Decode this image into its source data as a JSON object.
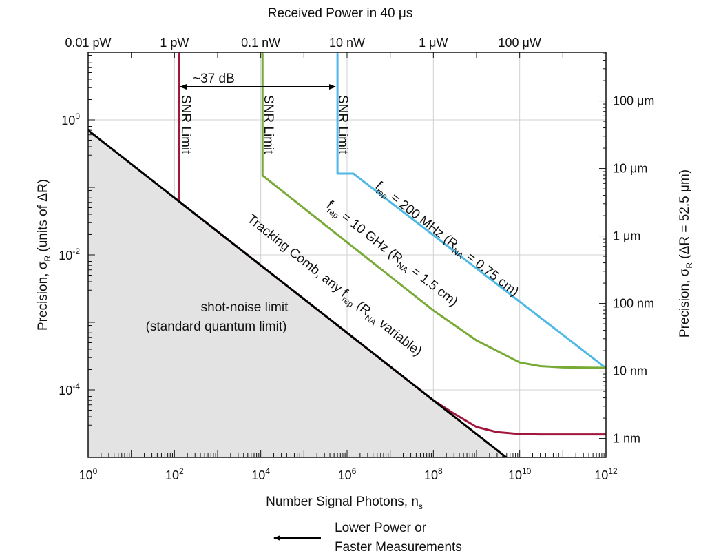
{
  "chart_data": {
    "type": "line",
    "top_axis_title": "Received Power in 40 μs",
    "bottom_axis_title": {
      "base": "Number Signal Photons, n",
      "sub": "s"
    },
    "left_axis_title": {
      "pre": "Precision, σ",
      "sub": "R",
      "post": " (units of ΔR)"
    },
    "right_axis_title": {
      "pre": "Precision, σ",
      "sub": "R",
      "post": " (ΔR = 52.5 μm)"
    },
    "x_scale": "log",
    "y_scale": "log",
    "xlim": [
      1,
      1000000000000.0
    ],
    "ylim": [
      1e-05,
      10
    ],
    "grid": true,
    "x_tick_labels": [
      {
        "base": "10",
        "exp": "0",
        "value": 1
      },
      {
        "base": "10",
        "exp": "2",
        "value": 100
      },
      {
        "base": "10",
        "exp": "4",
        "value": 10000
      },
      {
        "base": "10",
        "exp": "6",
        "value": 1000000
      },
      {
        "base": "10",
        "exp": "8",
        "value": 100000000
      },
      {
        "base": "10",
        "exp": "10",
        "value": 10000000000
      },
      {
        "base": "10",
        "exp": "12",
        "value": 1000000000000
      }
    ],
    "y_tick_labels": [
      {
        "base": "10",
        "exp": "0",
        "value": 1
      },
      {
        "base": "10",
        "exp": "-2",
        "value": 0.01
      },
      {
        "base": "10",
        "exp": "-4",
        "value": 0.0001
      }
    ],
    "top_tick_labels": [
      {
        "label": "0.01 pW",
        "x": 1
      },
      {
        "label": "1 pW",
        "x": 100
      },
      {
        "label": "0.1 nW",
        "x": 10000
      },
      {
        "label": "10 nW",
        "x": 1000000
      },
      {
        "label": "1 μW",
        "x": 100000000
      },
      {
        "label": "100 μW",
        "x": 10000000000
      }
    ],
    "right_tick_labels": [
      {
        "label": "100 μm",
        "y": 1.905
      },
      {
        "label": "10 μm",
        "y": 0.1905
      },
      {
        "label": "1 μm",
        "y": 0.01905
      },
      {
        "label": "100 nm",
        "y": 0.001905
      },
      {
        "label": "10 nm",
        "y": 0.0001905
      },
      {
        "label": "1 nm",
        "y": 1.905e-05
      }
    ],
    "series": [
      {
        "name": "shot-noise limit",
        "color": "#000000",
        "x": [
          1,
          10000000000.0
        ],
        "y": [
          0.7,
          7e-06
        ]
      },
      {
        "name": "Tracking Comb",
        "color": "#a0163c",
        "x": [
          130,
          130,
          10000000.0,
          100000000.0,
          300000000.0,
          1000000000.0,
          3000000000.0,
          10000000000.0,
          30000000000.0,
          1000000000000.0
        ],
        "y": [
          9.5,
          0.0614,
          0.0002214,
          7e-05,
          4.45e-05,
          2.82e-05,
          2.37e-05,
          2.22e-05,
          2.19e-05,
          2.19e-05
        ]
      },
      {
        "name": "f_rep = 10 GHz",
        "color": "#78aa36",
        "x": [
          11000,
          11000,
          11000,
          100000000.0,
          1000000000.0,
          10000000000.0,
          30000000000.0,
          100000000000.0,
          1000000000000.0
        ],
        "y": [
          9.5,
          0.16,
          0.15,
          0.0015,
          0.00054,
          0.000255,
          0.000225,
          0.000215,
          0.000212
        ]
      },
      {
        "name": "f_rep = 200 MHz",
        "color": "#4eb8e6",
        "x": [
          600000,
          600000,
          1400000,
          1000000000000.0
        ],
        "y": [
          9.5,
          0.16,
          0.16,
          0.00021
        ]
      }
    ],
    "annotations": {
      "snr_limit": "SNR Limit",
      "db_gap": "~37 dB",
      "shot_noise_line1": "shot-noise limit",
      "shot_noise_line2": "(standard quantum limit)",
      "tracking_comb": {
        "t1": "Tracking Comb, any f",
        "s1": "rep",
        "t2": " (R",
        "s2": "NA",
        "t3": " variable)"
      },
      "green_label": {
        "t1": "f",
        "s1": "rep",
        "t2": " = 10 GHz (R",
        "s2": "NA",
        "t3": " = 1.5 cm)"
      },
      "blue_label": {
        "t1": "f",
        "s1": "rep",
        "t2": " = 200 MHz (R",
        "s2": "NA",
        "t3": " = 0.75 cm)"
      }
    },
    "caption": {
      "line1": "Lower Power or",
      "line2": "Faster Measurements"
    }
  }
}
